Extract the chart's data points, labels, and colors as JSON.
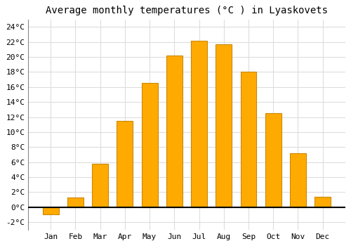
{
  "title": "Average monthly temperatures (°C ) in Lyaskovets",
  "months": [
    "Jan",
    "Feb",
    "Mar",
    "Apr",
    "May",
    "Jun",
    "Jul",
    "Aug",
    "Sep",
    "Oct",
    "Nov",
    "Dec"
  ],
  "values": [
    -1.0,
    1.3,
    5.8,
    11.5,
    16.5,
    20.2,
    22.2,
    21.7,
    18.0,
    12.5,
    7.2,
    1.4
  ],
  "bar_color": "#FFAA00",
  "bar_edge_color": "#CC8800",
  "background_color": "#FFFFFF",
  "plot_bg_color": "#FFFFFF",
  "grid_color": "#DDDDDD",
  "ylim": [
    -3,
    25
  ],
  "yticks": [
    -2,
    0,
    2,
    4,
    6,
    8,
    10,
    12,
    14,
    16,
    18,
    20,
    22,
    24
  ],
  "ytick_labels": [
    "-2°C",
    "0°C",
    "2°C",
    "4°C",
    "6°C",
    "8°C",
    "10°C",
    "12°C",
    "14°C",
    "16°C",
    "18°C",
    "20°C",
    "22°C",
    "24°C"
  ],
  "title_fontsize": 10,
  "tick_fontsize": 8,
  "font_family": "monospace",
  "bar_width": 0.65
}
